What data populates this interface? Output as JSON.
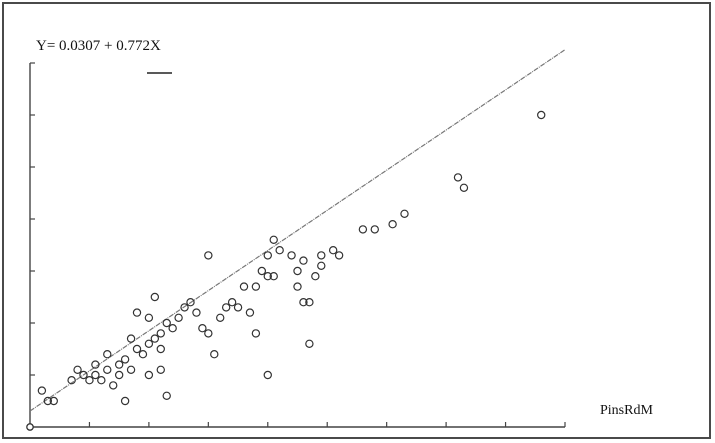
{
  "chart_data": {
    "type": "scatter",
    "title": "",
    "equation": "Y= 0.0307 + 0.772X",
    "xlabel": "PinsRdM",
    "ylabel": "",
    "xlim": [
      0,
      0.9
    ],
    "ylim": [
      0,
      0.7
    ],
    "grid": false,
    "legend": "none",
    "regression": {
      "intercept": 0.0307,
      "slope": 0.772
    },
    "series": [
      {
        "points": [
          [
            0.02,
            0.07
          ],
          [
            0.03,
            0.05
          ],
          [
            0.04,
            0.05
          ],
          [
            0.07,
            0.09
          ],
          [
            0.08,
            0.11
          ],
          [
            0.09,
            0.1
          ],
          [
            0.1,
            0.09
          ],
          [
            0.11,
            0.1
          ],
          [
            0.12,
            0.09
          ],
          [
            0.13,
            0.11
          ],
          [
            0.14,
            0.08
          ],
          [
            0.15,
            0.1
          ],
          [
            0.11,
            0.12
          ],
          [
            0.13,
            0.14
          ],
          [
            0.15,
            0.12
          ],
          [
            0.16,
            0.13
          ],
          [
            0.17,
            0.17
          ],
          [
            0.17,
            0.11
          ],
          [
            0.18,
            0.15
          ],
          [
            0.19,
            0.14
          ],
          [
            0.2,
            0.1
          ],
          [
            0.2,
            0.16
          ],
          [
            0.21,
            0.17
          ],
          [
            0.22,
            0.15
          ],
          [
            0.22,
            0.18
          ],
          [
            0.23,
            0.2
          ],
          [
            0.24,
            0.19
          ],
          [
            0.25,
            0.21
          ],
          [
            0.18,
            0.22
          ],
          [
            0.2,
            0.21
          ],
          [
            0.21,
            0.25
          ],
          [
            0.26,
            0.23
          ],
          [
            0.27,
            0.24
          ],
          [
            0.28,
            0.22
          ],
          [
            0.3,
            0.18
          ],
          [
            0.29,
            0.19
          ],
          [
            0.31,
            0.14
          ],
          [
            0.32,
            0.21
          ],
          [
            0.33,
            0.23
          ],
          [
            0.34,
            0.24
          ],
          [
            0.35,
            0.23
          ],
          [
            0.36,
            0.27
          ],
          [
            0.37,
            0.22
          ],
          [
            0.38,
            0.27
          ],
          [
            0.39,
            0.3
          ],
          [
            0.4,
            0.33
          ],
          [
            0.41,
            0.29
          ],
          [
            0.42,
            0.34
          ],
          [
            0.44,
            0.33
          ],
          [
            0.45,
            0.3
          ],
          [
            0.46,
            0.24
          ],
          [
            0.46,
            0.32
          ],
          [
            0.47,
            0.24
          ],
          [
            0.48,
            0.29
          ],
          [
            0.49,
            0.31
          ],
          [
            0.51,
            0.34
          ],
          [
            0.47,
            0.16
          ],
          [
            0.16,
            0.05
          ],
          [
            0.23,
            0.06
          ],
          [
            0.22,
            0.11
          ],
          [
            0.38,
            0.18
          ],
          [
            0.4,
            0.1
          ],
          [
            0.4,
            0.29
          ],
          [
            0.52,
            0.33
          ],
          [
            0.45,
            0.27
          ],
          [
            0.3,
            0.33
          ],
          [
            0.41,
            0.36
          ],
          [
            0.49,
            0.33
          ],
          [
            0.56,
            0.38
          ],
          [
            0.58,
            0.38
          ],
          [
            0.61,
            0.39
          ],
          [
            0.63,
            0.41
          ],
          [
            0.72,
            0.48
          ],
          [
            0.73,
            0.46
          ],
          [
            0.86,
            0.6
          ]
        ]
      }
    ]
  }
}
